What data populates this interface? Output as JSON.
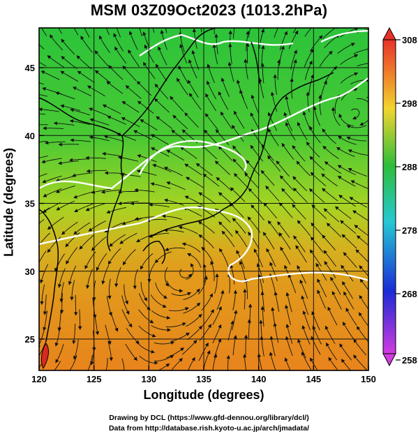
{
  "title": "MSM 03Z09Oct2023 (1013.2hPa)",
  "xlabel": "Longitude (degrees)",
  "ylabel": "Latitude  (degrees)",
  "x_ticks": [
    "120",
    "125",
    "130",
    "135",
    "140",
    "145",
    "150"
  ],
  "y_ticks": [
    "25",
    "30",
    "35",
    "40",
    "45"
  ],
  "colorbar_ticks": [
    "308",
    "298",
    "288",
    "278",
    "268",
    "258"
  ],
  "credits": [
    "Drawing by DCL (https://www.gfd-dennou.org/library/dcl/)",
    "Data from http://database.rish.kyoto-u.ac.jp/arch/jmadata/"
  ],
  "colors": {
    "south_field": "#e8861c",
    "mid_field": "#7fcf2c",
    "north_field": "#27c23c",
    "contour": "#ffffff",
    "coastline": "#000000",
    "colorbar_top": "#e8322a",
    "colorbar_mid": "#2fbd3a",
    "colorbar_bottom": "#d23be0"
  }
}
